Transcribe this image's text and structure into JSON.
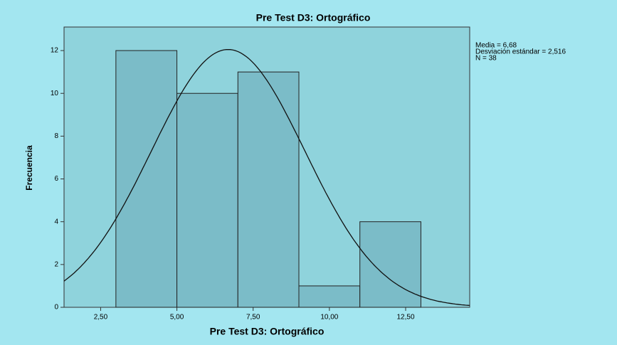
{
  "chart_data": {
    "type": "histogram",
    "title": "Pre Test D3: Ortográfico",
    "x_label": "Pre Test D3: Ortográfico",
    "y_label": "Frecuencia",
    "bins": [
      3,
      5,
      7,
      9,
      11,
      13
    ],
    "values": [
      12,
      10,
      11,
      1,
      4
    ],
    "color": "#7bbcc8",
    "xlim": [
      1.3,
      14.6
    ],
    "ylim": [
      0,
      13.1
    ],
    "xticks": [
      {
        "value": 2.5,
        "label": "2,50"
      },
      {
        "value": 5,
        "label": "5,00"
      },
      {
        "value": 7.5,
        "label": "7,50"
      },
      {
        "value": 10,
        "label": "10,00"
      },
      {
        "value": 12.5,
        "label": "12,50"
      }
    ],
    "yticks": [
      0,
      2,
      4,
      6,
      8,
      10,
      12
    ],
    "stats": [
      {
        "value": 6.68,
        "label": "Media = 6,68"
      },
      {
        "value": 2.516,
        "label": "Desviación estándar = 2,516"
      },
      {
        "value": 38,
        "label": "N = 38"
      }
    ]
  }
}
